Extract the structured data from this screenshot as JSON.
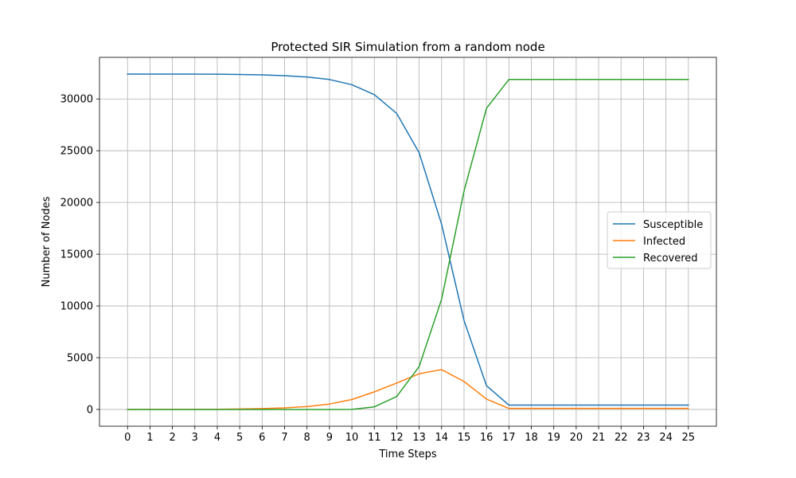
{
  "chart_data": {
    "type": "line",
    "title": "Protected SIR Simulation from a random node",
    "xlabel": "Time Steps",
    "ylabel": "Number of Nodes",
    "x": [
      0,
      1,
      2,
      3,
      4,
      5,
      6,
      7,
      8,
      9,
      10,
      11,
      12,
      13,
      14,
      15,
      16,
      17,
      18,
      19,
      20,
      21,
      22,
      23,
      24,
      25
    ],
    "xlim": [
      -1.25,
      26.25
    ],
    "ylim": [
      -1620,
      34020
    ],
    "yticks": [
      0,
      5000,
      10000,
      15000,
      20000,
      25000,
      30000
    ],
    "grid": true,
    "legend_position": "center-right",
    "series": [
      {
        "name": "Susceptible",
        "color": "#1f77b4",
        "values": [
          32400,
          32400,
          32400,
          32400,
          32390,
          32370,
          32330,
          32250,
          32120,
          31880,
          31380,
          30420,
          28600,
          24800,
          17900,
          8600,
          2300,
          420,
          420,
          420,
          420,
          420,
          420,
          420,
          420,
          420
        ]
      },
      {
        "name": "Infected",
        "color": "#ff7f0e",
        "values": [
          1,
          2,
          5,
          10,
          20,
          45,
          85,
          150,
          280,
          520,
          960,
          1700,
          2550,
          3450,
          3850,
          2700,
          1000,
          100,
          100,
          100,
          100,
          100,
          100,
          100,
          100,
          100
        ]
      },
      {
        "name": "Recovered",
        "color": "#2ca02c",
        "values": [
          0,
          0,
          0,
          0,
          0,
          0,
          0,
          0,
          0,
          0,
          10,
          250,
          1250,
          4150,
          10650,
          21100,
          29100,
          31880,
          31880,
          31880,
          31880,
          31880,
          31880,
          31880,
          31880,
          31880
        ]
      }
    ]
  }
}
